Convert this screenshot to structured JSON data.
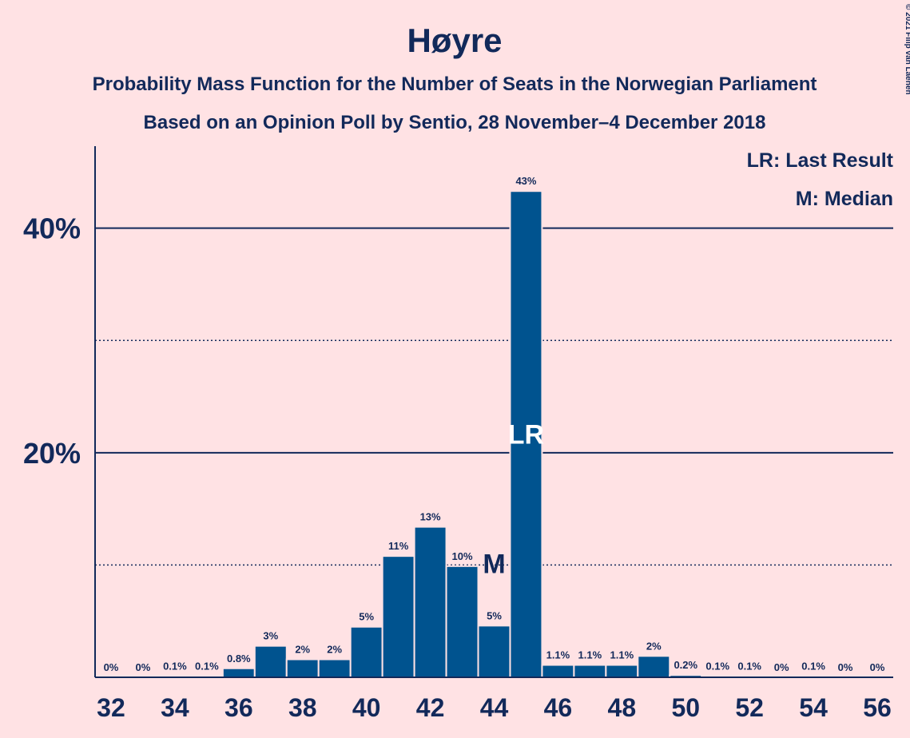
{
  "chart_data": {
    "type": "bar",
    "title": "Høyre",
    "subtitle": "Probability Mass Function for the Number of Seats in the Norwegian Parliament",
    "subtitle2": "Based on an Opinion Poll by Sentio, 28 November–4 December 2018",
    "x": [
      32,
      33,
      34,
      35,
      36,
      37,
      38,
      39,
      40,
      41,
      42,
      43,
      44,
      45,
      46,
      47,
      48,
      49,
      50,
      51,
      52,
      53,
      54,
      55,
      56
    ],
    "values": [
      0,
      0,
      0.1,
      0.1,
      0.8,
      2.8,
      1.6,
      1.6,
      4.5,
      10.8,
      13.4,
      9.9,
      4.6,
      43.3,
      1.1,
      1.1,
      1.1,
      1.9,
      0.2,
      0.1,
      0.1,
      0,
      0.1,
      0,
      0
    ],
    "value_labels": [
      "0%",
      "0%",
      "0.1%",
      "0.1%",
      "0.8%",
      "3%",
      "2%",
      "2%",
      "5%",
      "11%",
      "13%",
      "10%",
      "5%",
      "43%",
      "1.1%",
      "1.1%",
      "1.1%",
      "2%",
      "0.2%",
      "0.1%",
      "0.1%",
      "0%",
      "0.1%",
      "0%",
      "0%"
    ],
    "color": "#00538f",
    "xlim": [
      31.5,
      56.5
    ],
    "xticks": [
      32,
      34,
      36,
      38,
      40,
      42,
      44,
      46,
      48,
      50,
      52,
      54,
      56
    ],
    "ylim": [
      0,
      47.3
    ],
    "yticks": [
      {
        "value": 20,
        "label": "20%"
      },
      {
        "value": 40,
        "label": "40%"
      }
    ],
    "minor_yticks": [
      10,
      30
    ],
    "grid": true,
    "annotations": [
      {
        "text": "M",
        "x": 44
      },
      {
        "text": "LR",
        "x": 45
      }
    ],
    "legend": [
      "LR: Last Result",
      "M: Median"
    ],
    "copyright": "© 2021 Filip van Laenen"
  }
}
